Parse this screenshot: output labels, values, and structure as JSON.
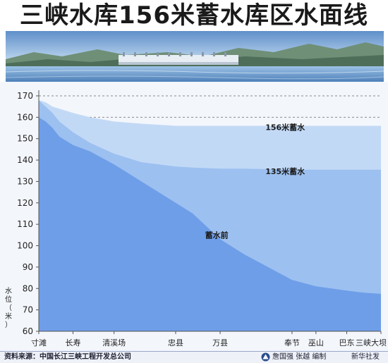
{
  "title": "三峡水库156米蓄水库区水面线",
  "footer": {
    "source": "资料来源：中国长江三峡工程开发总公司",
    "credit": "詹国强  张越  编制",
    "agency": "新华社发"
  },
  "chart_data": {
    "type": "area",
    "ylabel": "水位（米）",
    "ylim": [
      60,
      170
    ],
    "yticks": [
      60,
      70,
      80,
      90,
      100,
      110,
      120,
      130,
      140,
      150,
      160,
      170
    ],
    "grid": false,
    "reference_lines": [
      170,
      160
    ],
    "locations": [
      {
        "name": "寸滩",
        "pos": 0
      },
      {
        "name": "长寿",
        "pos": 0.1
      },
      {
        "name": "清溪场",
        "pos": 0.22
      },
      {
        "name": "忠县",
        "pos": 0.4
      },
      {
        "name": "万县",
        "pos": 0.53
      },
      {
        "name": "奉节",
        "pos": 0.74
      },
      {
        "name": "巫山",
        "pos": 0.81
      },
      {
        "name": "巴东",
        "pos": 0.9
      },
      {
        "name": "三峡大坝",
        "pos": 1
      }
    ],
    "x": [
      0,
      0.02,
      0.04,
      0.06,
      0.1,
      0.15,
      0.22,
      0.3,
      0.4,
      0.45,
      0.53,
      0.6,
      0.74,
      0.81,
      0.9,
      0.95,
      1
    ],
    "series": [
      {
        "name": "156米蓄水",
        "color": "#c2d9f6",
        "values": [
          168,
          167,
          165,
          164,
          162,
          160,
          158,
          157,
          156,
          156,
          156,
          156,
          156,
          156,
          156,
          156,
          156
        ]
      },
      {
        "name": "135米蓄水",
        "color": "#9cc0f0",
        "values": [
          168,
          165,
          162,
          158,
          153,
          148,
          143,
          139,
          137,
          136.5,
          136,
          136,
          135.5,
          135.5,
          135.5,
          135.5,
          135.5
        ]
      },
      {
        "name": "蓄水前",
        "color": "#6e9ee8",
        "values": [
          160,
          158,
          155,
          151,
          147,
          144,
          138,
          130,
          120,
          115,
          103,
          96,
          84,
          81,
          79,
          78,
          77.5
        ]
      }
    ]
  }
}
